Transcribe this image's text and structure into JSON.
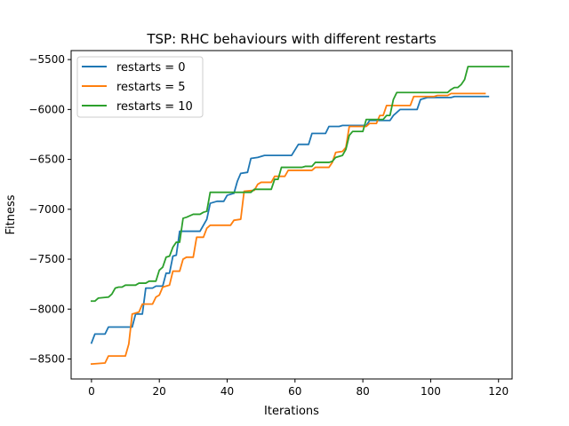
{
  "chart_data": {
    "type": "line",
    "title": "TSP: RHC behaviours with different restarts",
    "xlabel": "Iterations",
    "ylabel": "Fitness",
    "xlim": [
      -6,
      124
    ],
    "ylim": [
      -8700,
      -5410
    ],
    "xticks": [
      0,
      20,
      40,
      60,
      80,
      100,
      120
    ],
    "yticks": [
      -8500,
      -8000,
      -7500,
      -7000,
      -6500,
      -6000,
      -5500
    ],
    "grid": false,
    "legend_position": "top-left",
    "series": [
      {
        "name": "restarts = 0",
        "color": "#1f77b4",
        "points": [
          [
            0,
            -8340
          ],
          [
            1,
            -8250
          ],
          [
            4,
            -8250
          ],
          [
            5,
            -8180
          ],
          [
            12,
            -8180
          ],
          [
            13,
            -8050
          ],
          [
            15,
            -8050
          ],
          [
            16,
            -7790
          ],
          [
            18,
            -7790
          ],
          [
            19,
            -7770
          ],
          [
            21,
            -7770
          ],
          [
            22,
            -7640
          ],
          [
            23,
            -7640
          ],
          [
            24,
            -7470
          ],
          [
            25,
            -7460
          ],
          [
            26,
            -7220
          ],
          [
            32,
            -7220
          ],
          [
            34,
            -7100
          ],
          [
            35,
            -6940
          ],
          [
            37,
            -6920
          ],
          [
            39,
            -6920
          ],
          [
            40,
            -6860
          ],
          [
            42,
            -6840
          ],
          [
            43,
            -6720
          ],
          [
            44,
            -6640
          ],
          [
            46,
            -6630
          ],
          [
            47,
            -6490
          ],
          [
            49,
            -6480
          ],
          [
            51,
            -6460
          ],
          [
            59,
            -6460
          ],
          [
            61,
            -6350
          ],
          [
            64,
            -6350
          ],
          [
            65,
            -6240
          ],
          [
            69,
            -6240
          ],
          [
            70,
            -6170
          ],
          [
            73,
            -6170
          ],
          [
            74,
            -6160
          ],
          [
            81,
            -6160
          ],
          [
            82,
            -6110
          ],
          [
            88,
            -6110
          ],
          [
            89,
            -6060
          ],
          [
            91,
            -6000
          ],
          [
            96,
            -6000
          ],
          [
            97,
            -5900
          ],
          [
            99,
            -5880
          ],
          [
            106,
            -5880
          ],
          [
            107,
            -5870
          ],
          [
            117,
            -5870
          ]
        ]
      },
      {
        "name": "restarts = 5",
        "color": "#ff7f0e",
        "points": [
          [
            0,
            -8550
          ],
          [
            4,
            -8540
          ],
          [
            5,
            -8470
          ],
          [
            10,
            -8470
          ],
          [
            11,
            -8350
          ],
          [
            12,
            -8050
          ],
          [
            14,
            -8030
          ],
          [
            15,
            -7950
          ],
          [
            18,
            -7950
          ],
          [
            19,
            -7880
          ],
          [
            20,
            -7860
          ],
          [
            21,
            -7780
          ],
          [
            23,
            -7760
          ],
          [
            24,
            -7620
          ],
          [
            26,
            -7620
          ],
          [
            27,
            -7500
          ],
          [
            28,
            -7480
          ],
          [
            30,
            -7480
          ],
          [
            31,
            -7280
          ],
          [
            33,
            -7280
          ],
          [
            34,
            -7190
          ],
          [
            35,
            -7160
          ],
          [
            41,
            -7160
          ],
          [
            42,
            -7110
          ],
          [
            44,
            -7100
          ],
          [
            45,
            -6820
          ],
          [
            48,
            -6810
          ],
          [
            49,
            -6750
          ],
          [
            50,
            -6730
          ],
          [
            53,
            -6730
          ],
          [
            54,
            -6670
          ],
          [
            57,
            -6670
          ],
          [
            58,
            -6610
          ],
          [
            65,
            -6610
          ],
          [
            66,
            -6580
          ],
          [
            70,
            -6580
          ],
          [
            71,
            -6530
          ],
          [
            72,
            -6430
          ],
          [
            74,
            -6420
          ],
          [
            75,
            -6380
          ],
          [
            76,
            -6170
          ],
          [
            81,
            -6170
          ],
          [
            82,
            -6140
          ],
          [
            84,
            -6140
          ],
          [
            85,
            -6060
          ],
          [
            86,
            -6060
          ],
          [
            87,
            -5960
          ],
          [
            94,
            -5960
          ],
          [
            95,
            -5870
          ],
          [
            101,
            -5870
          ],
          [
            102,
            -5860
          ],
          [
            105,
            -5860
          ],
          [
            106,
            -5840
          ],
          [
            116,
            -5840
          ]
        ]
      },
      {
        "name": "restarts = 10",
        "color": "#2ca02c",
        "points": [
          [
            0,
            -7920
          ],
          [
            1,
            -7920
          ],
          [
            2,
            -7890
          ],
          [
            5,
            -7880
          ],
          [
            6,
            -7850
          ],
          [
            7,
            -7790
          ],
          [
            8,
            -7780
          ],
          [
            9,
            -7780
          ],
          [
            10,
            -7760
          ],
          [
            13,
            -7760
          ],
          [
            14,
            -7740
          ],
          [
            16,
            -7740
          ],
          [
            17,
            -7720
          ],
          [
            19,
            -7720
          ],
          [
            20,
            -7610
          ],
          [
            21,
            -7580
          ],
          [
            22,
            -7480
          ],
          [
            23,
            -7470
          ],
          [
            24,
            -7380
          ],
          [
            25,
            -7330
          ],
          [
            26,
            -7330
          ],
          [
            27,
            -7090
          ],
          [
            28,
            -7080
          ],
          [
            30,
            -7050
          ],
          [
            32,
            -7050
          ],
          [
            33,
            -7030
          ],
          [
            34,
            -7020
          ],
          [
            35,
            -6830
          ],
          [
            47,
            -6830
          ],
          [
            48,
            -6800
          ],
          [
            53,
            -6800
          ],
          [
            54,
            -6700
          ],
          [
            55,
            -6700
          ],
          [
            56,
            -6580
          ],
          [
            62,
            -6580
          ],
          [
            63,
            -6570
          ],
          [
            65,
            -6570
          ],
          [
            66,
            -6530
          ],
          [
            70,
            -6530
          ],
          [
            71,
            -6520
          ],
          [
            72,
            -6480
          ],
          [
            73,
            -6470
          ],
          [
            74,
            -6460
          ],
          [
            75,
            -6400
          ],
          [
            76,
            -6260
          ],
          [
            77,
            -6220
          ],
          [
            80,
            -6220
          ],
          [
            81,
            -6100
          ],
          [
            86,
            -6100
          ],
          [
            87,
            -6060
          ],
          [
            88,
            -6060
          ],
          [
            89,
            -5900
          ],
          [
            90,
            -5830
          ],
          [
            105,
            -5830
          ],
          [
            106,
            -5800
          ],
          [
            107,
            -5780
          ],
          [
            108,
            -5780
          ],
          [
            109,
            -5750
          ],
          [
            110,
            -5700
          ],
          [
            111,
            -5570
          ],
          [
            123,
            -5570
          ]
        ]
      }
    ]
  }
}
